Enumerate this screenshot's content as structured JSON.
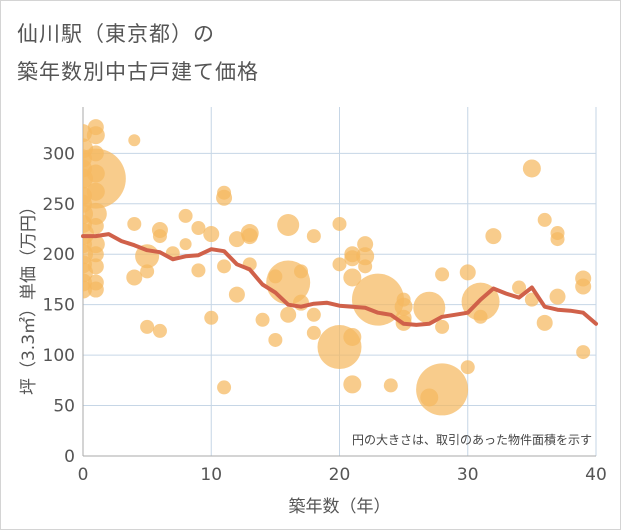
{
  "chart_data": {
    "type": "scatter",
    "title": "仙川駅（東京都）の築年数別中古戸建て価格",
    "title_lines": [
      "仙川駅（東京都）の",
      "築年数別中古戸建て価格"
    ],
    "xlabel": "築年数（年）",
    "ylabel": "坪（3.3㎡）単価（万円）",
    "xlim": [
      0,
      40
    ],
    "ylim": [
      0,
      340
    ],
    "xticks": [
      0,
      10,
      20,
      30,
      40
    ],
    "yticks": [
      0,
      50,
      100,
      150,
      200,
      250,
      300
    ],
    "grid": true,
    "annotation": "円の大きさは、取引のあった物件面積を示す",
    "colors": {
      "bubble": "#f5b95f",
      "line": "#d0614a",
      "grid": "#c6d6e6",
      "text": "#555555"
    },
    "bubbles": [
      {
        "x": 0,
        "y": 320,
        "size": 9
      },
      {
        "x": 0,
        "y": 305,
        "size": 10
      },
      {
        "x": 0,
        "y": 295,
        "size": 9
      },
      {
        "x": 0,
        "y": 285,
        "size": 9
      },
      {
        "x": 0,
        "y": 275,
        "size": 10
      },
      {
        "x": 0,
        "y": 258,
        "size": 9
      },
      {
        "x": 0,
        "y": 250,
        "size": 9
      },
      {
        "x": 0,
        "y": 240,
        "size": 10
      },
      {
        "x": 0,
        "y": 230,
        "size": 9
      },
      {
        "x": 0,
        "y": 220,
        "size": 11
      },
      {
        "x": 0,
        "y": 210,
        "size": 9
      },
      {
        "x": 0,
        "y": 200,
        "size": 10
      },
      {
        "x": 0,
        "y": 190,
        "size": 9
      },
      {
        "x": 0,
        "y": 182,
        "size": 10
      },
      {
        "x": 0,
        "y": 172,
        "size": 9
      },
      {
        "x": 0,
        "y": 165,
        "size": 9
      },
      {
        "x": 1,
        "y": 326,
        "size": 8
      },
      {
        "x": 1,
        "y": 318,
        "size": 9
      },
      {
        "x": 1,
        "y": 300,
        "size": 8
      },
      {
        "x": 1,
        "y": 280,
        "size": 9
      },
      {
        "x": 1,
        "y": 275,
        "size": 30
      },
      {
        "x": 1,
        "y": 262,
        "size": 9
      },
      {
        "x": 1,
        "y": 240,
        "size": 11
      },
      {
        "x": 1,
        "y": 228,
        "size": 8
      },
      {
        "x": 1,
        "y": 210,
        "size": 9
      },
      {
        "x": 1,
        "y": 200,
        "size": 8
      },
      {
        "x": 1,
        "y": 188,
        "size": 8
      },
      {
        "x": 1,
        "y": 172,
        "size": 8
      },
      {
        "x": 1,
        "y": 165,
        "size": 8
      },
      {
        "x": 4,
        "y": 313,
        "size": 6
      },
      {
        "x": 4,
        "y": 230,
        "size": 7
      },
      {
        "x": 4,
        "y": 177,
        "size": 8
      },
      {
        "x": 5,
        "y": 198,
        "size": 12
      },
      {
        "x": 5,
        "y": 183,
        "size": 7
      },
      {
        "x": 5,
        "y": 128,
        "size": 7
      },
      {
        "x": 6,
        "y": 224,
        "size": 8
      },
      {
        "x": 6,
        "y": 218,
        "size": 7
      },
      {
        "x": 6,
        "y": 124,
        "size": 7
      },
      {
        "x": 7,
        "y": 201,
        "size": 7
      },
      {
        "x": 8,
        "y": 238,
        "size": 7
      },
      {
        "x": 8,
        "y": 210,
        "size": 6
      },
      {
        "x": 9,
        "y": 226,
        "size": 7
      },
      {
        "x": 9,
        "y": 184,
        "size": 7
      },
      {
        "x": 10,
        "y": 220,
        "size": 8
      },
      {
        "x": 10,
        "y": 137,
        "size": 7
      },
      {
        "x": 11,
        "y": 261,
        "size": 7
      },
      {
        "x": 11,
        "y": 256,
        "size": 8
      },
      {
        "x": 11,
        "y": 188,
        "size": 7
      },
      {
        "x": 11,
        "y": 68,
        "size": 7
      },
      {
        "x": 12,
        "y": 215,
        "size": 8
      },
      {
        "x": 12,
        "y": 160,
        "size": 8
      },
      {
        "x": 13,
        "y": 221,
        "size": 9
      },
      {
        "x": 13,
        "y": 218,
        "size": 8
      },
      {
        "x": 13,
        "y": 190,
        "size": 7
      },
      {
        "x": 14,
        "y": 135,
        "size": 7
      },
      {
        "x": 15,
        "y": 178,
        "size": 7
      },
      {
        "x": 15,
        "y": 115,
        "size": 7
      },
      {
        "x": 16,
        "y": 229,
        "size": 11
      },
      {
        "x": 16,
        "y": 172,
        "size": 22
      },
      {
        "x": 16,
        "y": 140,
        "size": 8
      },
      {
        "x": 17,
        "y": 183,
        "size": 7
      },
      {
        "x": 17,
        "y": 152,
        "size": 8
      },
      {
        "x": 18,
        "y": 218,
        "size": 7
      },
      {
        "x": 18,
        "y": 140,
        "size": 7
      },
      {
        "x": 18,
        "y": 122,
        "size": 7
      },
      {
        "x": 20,
        "y": 230,
        "size": 7
      },
      {
        "x": 20,
        "y": 190,
        "size": 7
      },
      {
        "x": 20,
        "y": 108,
        "size": 22
      },
      {
        "x": 21,
        "y": 200,
        "size": 8
      },
      {
        "x": 21,
        "y": 196,
        "size": 8
      },
      {
        "x": 21,
        "y": 177,
        "size": 9
      },
      {
        "x": 21,
        "y": 118,
        "size": 9
      },
      {
        "x": 21,
        "y": 71,
        "size": 9
      },
      {
        "x": 22,
        "y": 210,
        "size": 8
      },
      {
        "x": 22,
        "y": 198,
        "size": 9
      },
      {
        "x": 22,
        "y": 188,
        "size": 7
      },
      {
        "x": 23,
        "y": 155,
        "size": 26
      },
      {
        "x": 24,
        "y": 70,
        "size": 7
      },
      {
        "x": 25,
        "y": 155,
        "size": 7
      },
      {
        "x": 25,
        "y": 148,
        "size": 9
      },
      {
        "x": 25,
        "y": 137,
        "size": 8
      },
      {
        "x": 25,
        "y": 132,
        "size": 8
      },
      {
        "x": 27,
        "y": 147,
        "size": 16
      },
      {
        "x": 27,
        "y": 58,
        "size": 9
      },
      {
        "x": 28,
        "y": 180,
        "size": 7
      },
      {
        "x": 28,
        "y": 128,
        "size": 7
      },
      {
        "x": 28,
        "y": 66,
        "size": 26
      },
      {
        "x": 30,
        "y": 182,
        "size": 8
      },
      {
        "x": 30,
        "y": 88,
        "size": 7
      },
      {
        "x": 31,
        "y": 153,
        "size": 19
      },
      {
        "x": 31,
        "y": 138,
        "size": 7
      },
      {
        "x": 32,
        "y": 218,
        "size": 8
      },
      {
        "x": 34,
        "y": 167,
        "size": 7
      },
      {
        "x": 35,
        "y": 285,
        "size": 9
      },
      {
        "x": 35,
        "y": 155,
        "size": 7
      },
      {
        "x": 36,
        "y": 234,
        "size": 7
      },
      {
        "x": 36,
        "y": 132,
        "size": 8
      },
      {
        "x": 37,
        "y": 221,
        "size": 7
      },
      {
        "x": 37,
        "y": 215,
        "size": 7
      },
      {
        "x": 37,
        "y": 158,
        "size": 8
      },
      {
        "x": 39,
        "y": 176,
        "size": 8
      },
      {
        "x": 39,
        "y": 168,
        "size": 8
      },
      {
        "x": 39,
        "y": 103,
        "size": 7
      }
    ],
    "trend": {
      "x": [
        0,
        1,
        2,
        3,
        4,
        5,
        6,
        7,
        8,
        9,
        10,
        11,
        12,
        13,
        14,
        15,
        16,
        17,
        18,
        19,
        20,
        21,
        22,
        23,
        24,
        25,
        26,
        27,
        28,
        29,
        30,
        31,
        32,
        33,
        34,
        35,
        36,
        37,
        38,
        39,
        40
      ],
      "y": [
        218,
        218,
        220,
        213,
        209,
        204,
        202,
        195,
        198,
        199,
        205,
        203,
        190,
        185,
        170,
        162,
        150,
        148,
        151,
        152,
        149,
        148,
        147,
        142,
        140,
        131,
        130,
        131,
        138,
        140,
        142,
        155,
        166,
        161,
        157,
        167,
        148,
        145,
        144,
        142,
        131
      ]
    }
  }
}
